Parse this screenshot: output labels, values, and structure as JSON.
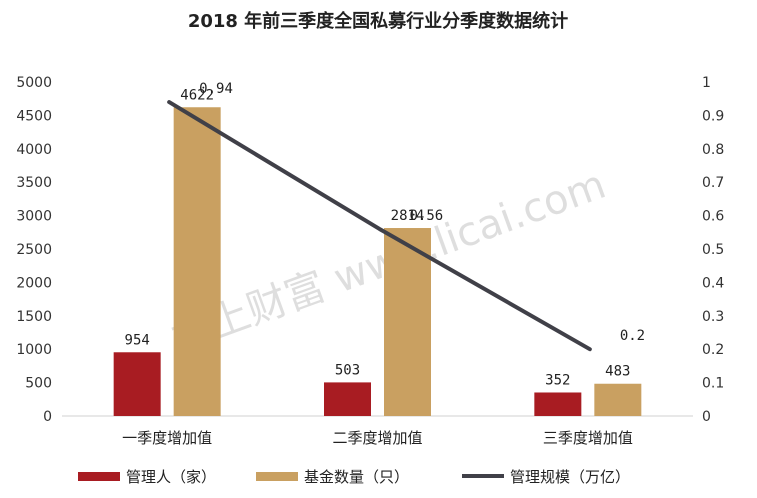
{
  "chart_data": {
    "type": "bar",
    "title": "2018 年前三季度全国私募行业分季度数据统计",
    "categories": [
      "一季度增加值",
      "二季度增加值",
      "三季度增加值"
    ],
    "series": [
      {
        "name": "管理人（家）",
        "type": "bar",
        "axis": "left",
        "color": "#a81c22",
        "values": [
          954,
          503,
          352
        ]
      },
      {
        "name": "基金数量（只）",
        "type": "bar",
        "axis": "left",
        "color": "#c9a061",
        "values": [
          4622,
          2814,
          483
        ]
      },
      {
        "name": "管理规模（万亿）",
        "type": "line",
        "axis": "right",
        "color": "#404048",
        "values": [
          0.94,
          0.56,
          0.2
        ]
      }
    ],
    "ylim_left": [
      0,
      5000
    ],
    "yticks_left": [
      "0",
      "500",
      "1000",
      "1500",
      "2000",
      "2500",
      "3000",
      "3500",
      "4000",
      "4500",
      "5000"
    ],
    "ylim_right": [
      0,
      1
    ],
    "yticks_right": [
      "0",
      "0.1",
      "0.2",
      "0.3",
      "0.4",
      "0.5",
      "0.6",
      "0.7",
      "0.8",
      "0.9",
      "1"
    ],
    "grid": false,
    "legend_position": "bottom"
  },
  "watermark": {
    "text": "格上财富 www.licai.com"
  }
}
